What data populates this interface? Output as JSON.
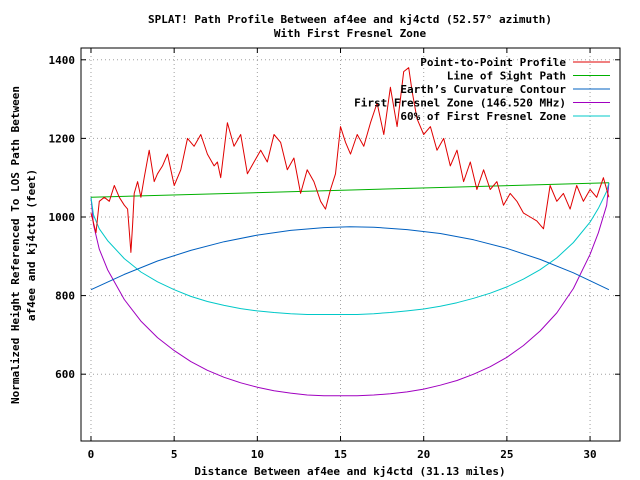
{
  "chart_data": {
    "type": "line",
    "title": "SPLAT! Path Profile Between af4ee and kj4ctd (52.57° azimuth)",
    "subtitle": "With First Fresnel Zone",
    "xlabel": "Distance Between af4ee and kj4ctd (31.13 miles)",
    "ylabel_line1": "Normalized Height Referenced To LOS Path Between",
    "ylabel_line2": "af4ee and kj4ctd (feet)",
    "xlim": [
      -0.6,
      31.8
    ],
    "ylim": [
      430,
      1430
    ],
    "xticks": [
      0,
      5,
      10,
      15,
      20,
      25,
      30
    ],
    "xtick_labels": [
      "0",
      "5",
      "10",
      "15",
      "20",
      "25",
      "30"
    ],
    "yticks": [
      600,
      800,
      1000,
      1200,
      1400
    ],
    "ytick_labels": [
      "600",
      "800",
      "1000",
      "1200",
      "1400"
    ],
    "grid": true,
    "legend_position": "top-right",
    "path_length": 31.13,
    "series": [
      {
        "name": "Point-to-Point Profile",
        "color": "#e00000",
        "x": [
          0,
          0.3,
          0.5,
          0.8,
          1.1,
          1.4,
          1.7,
          2.0,
          2.2,
          2.4,
          2.5,
          2.6,
          2.8,
          3.0,
          3.2,
          3.5,
          3.8,
          4.0,
          4.3,
          4.6,
          5.0,
          5.4,
          5.8,
          6.2,
          6.6,
          7.0,
          7.4,
          7.6,
          7.8,
          8.2,
          8.6,
          9.0,
          9.4,
          9.8,
          10.2,
          10.6,
          11.0,
          11.4,
          11.8,
          12.2,
          12.6,
          13.0,
          13.4,
          13.8,
          14.1,
          14.4,
          14.7,
          15.0,
          15.3,
          15.6,
          16.0,
          16.4,
          16.8,
          17.2,
          17.6,
          18.0,
          18.4,
          18.8,
          19.1,
          19.3,
          19.6,
          20.0,
          20.4,
          20.8,
          21.2,
          21.6,
          22.0,
          22.4,
          22.8,
          23.2,
          23.6,
          24.0,
          24.4,
          24.8,
          25.2,
          25.6,
          26.0,
          26.4,
          26.8,
          27.2,
          27.6,
          28.0,
          28.4,
          28.8,
          29.2,
          29.6,
          30.0,
          30.4,
          30.8,
          31.13
        ],
        "values": [
          1010,
          960,
          1040,
          1050,
          1040,
          1080,
          1050,
          1030,
          1020,
          910,
          980,
          1060,
          1090,
          1050,
          1100,
          1170,
          1090,
          1110,
          1130,
          1160,
          1080,
          1120,
          1200,
          1180,
          1210,
          1160,
          1130,
          1140,
          1100,
          1240,
          1180,
          1210,
          1110,
          1140,
          1170,
          1140,
          1210,
          1190,
          1120,
          1150,
          1060,
          1120,
          1090,
          1040,
          1020,
          1070,
          1110,
          1230,
          1190,
          1160,
          1210,
          1180,
          1240,
          1290,
          1210,
          1330,
          1230,
          1370,
          1380,
          1320,
          1250,
          1210,
          1230,
          1170,
          1200,
          1130,
          1170,
          1090,
          1140,
          1070,
          1120,
          1070,
          1090,
          1030,
          1060,
          1040,
          1010,
          1000,
          990,
          970,
          1080,
          1040,
          1060,
          1020,
          1080,
          1040,
          1070,
          1050,
          1100,
          1050
        ]
      },
      {
        "name": "Line of Sight Path",
        "color": "#00b000",
        "x": [
          0,
          31.13
        ],
        "values": [
          1050,
          1087
        ]
      },
      {
        "name": "Earth’s Curvature Contour",
        "color": "#0060c0",
        "x": [
          0,
          2,
          4,
          6,
          8,
          10,
          12,
          14,
          15.565,
          17,
          19,
          21,
          23,
          25,
          27,
          29,
          31.13
        ],
        "values": [
          815,
          854,
          888,
          915,
          937,
          954,
          966,
          973,
          975,
          974,
          968,
          958,
          942,
          920,
          892,
          858,
          815
        ]
      },
      {
        "name": "First Fresnel Zone (146.520 MHz)",
        "color": "#a000c0",
        "x": [
          0,
          0.15,
          0.5,
          1,
          2,
          3,
          4,
          5,
          6,
          7,
          8,
          9,
          10,
          11,
          12,
          13,
          14,
          15,
          15.565,
          16,
          17,
          18,
          19,
          20,
          21,
          22,
          23,
          24,
          25,
          26,
          27,
          28,
          29,
          30,
          30.5,
          31,
          31.13
        ],
        "values": [
          1050,
          980,
          918,
          866,
          790,
          735,
          693,
          660,
          632,
          610,
          592,
          578,
          567,
          558,
          552,
          547,
          545,
          545,
          545,
          545,
          547,
          550,
          555,
          562,
          572,
          584,
          600,
          619,
          643,
          673,
          710,
          756,
          818,
          905,
          960,
          1030,
          1087
        ]
      },
      {
        "name": "60% of First Fresnel Zone",
        "color": "#00c8c8",
        "x": [
          0,
          0.15,
          0.5,
          1,
          2,
          3,
          4,
          5,
          6,
          7,
          8,
          9,
          10,
          11,
          12,
          13,
          14,
          15,
          15.565,
          16,
          17,
          18,
          19,
          20,
          21,
          22,
          23,
          24,
          25,
          26,
          27,
          28,
          29,
          30,
          30.5,
          31,
          31.13
        ],
        "values": [
          1050,
          1005,
          970,
          940,
          894,
          860,
          835,
          815,
          798,
          785,
          775,
          767,
          761,
          757,
          754,
          752,
          752,
          752,
          752,
          752,
          754,
          757,
          761,
          766,
          773,
          782,
          793,
          806,
          822,
          842,
          866,
          896,
          935,
          987,
          1022,
          1065,
          1087
        ]
      }
    ]
  }
}
